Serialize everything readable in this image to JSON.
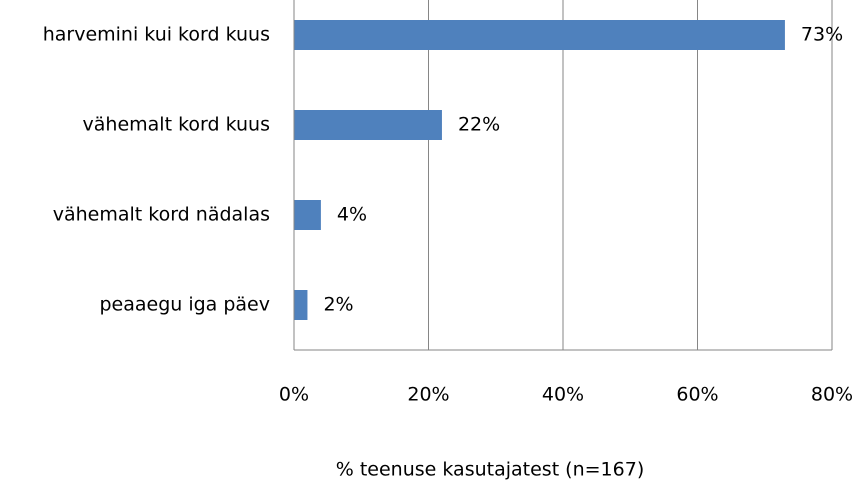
{
  "chart_data": {
    "type": "hbar",
    "categories": [
      "harvemini kui kord kuus",
      "vähemalt kord kuus",
      "vähemalt kord nädalas",
      "peaaegu iga päev"
    ],
    "values": [
      73,
      22,
      4,
      2
    ],
    "value_labels": [
      "73%",
      "22%",
      "4%",
      "2%"
    ],
    "color": "#4f81bd",
    "xlabel": "% teenuse kasutajatest (n=167)",
    "xlim": [
      0,
      80
    ],
    "xticks": [
      {
        "value": 0,
        "label": "0%"
      },
      {
        "value": 20,
        "label": "20%"
      },
      {
        "value": 40,
        "label": "40%"
      },
      {
        "value": 60,
        "label": "60%"
      },
      {
        "value": 80,
        "label": "80%"
      }
    ],
    "grid": true
  }
}
